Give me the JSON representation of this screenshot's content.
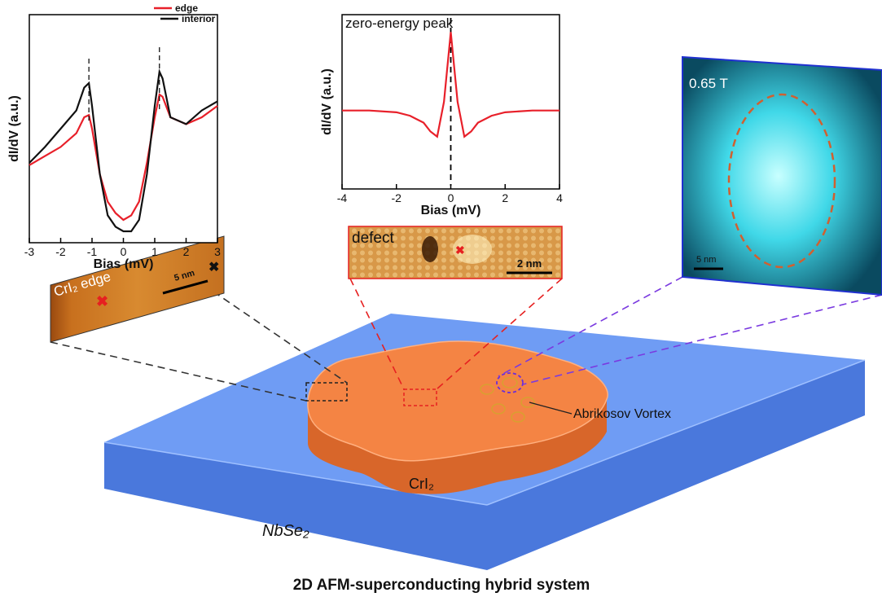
{
  "chart_data": [
    {
      "type": "line",
      "x_label": "Bias (mV)",
      "y_label": "dI/dV (a.u.)",
      "legend": "upper right",
      "x": [
        -3,
        -2.5,
        -2,
        -1.5,
        -1.25,
        -1.1,
        -1,
        -0.75,
        -0.5,
        -0.25,
        0,
        0.25,
        0.5,
        0.75,
        1,
        1.15,
        1.25,
        1.5,
        2,
        2.5,
        3
      ],
      "series": [
        {
          "name": "edge",
          "color": "#e8202a",
          "values": [
            0.34,
            0.38,
            0.42,
            0.48,
            0.55,
            0.56,
            0.5,
            0.3,
            0.18,
            0.13,
            0.1,
            0.12,
            0.18,
            0.35,
            0.55,
            0.65,
            0.64,
            0.55,
            0.52,
            0.55,
            0.6
          ]
        },
        {
          "name": "interior",
          "color": "#111111",
          "values": [
            0.35,
            0.42,
            0.5,
            0.58,
            0.68,
            0.7,
            0.6,
            0.3,
            0.12,
            0.07,
            0.05,
            0.05,
            0.1,
            0.3,
            0.6,
            0.75,
            0.72,
            0.55,
            0.52,
            0.58,
            0.62
          ]
        }
      ],
      "xlim": [
        -3,
        3
      ],
      "xticks": [
        -3,
        -2,
        -1,
        0,
        1,
        2,
        3
      ],
      "ylim": [
        0,
        1
      ]
    },
    {
      "type": "line",
      "title": "zero-energy peak",
      "x_label": "Bias (mV)",
      "y_label": "dI/dV (a.u.)",
      "x": [
        -4,
        -3,
        -2,
        -1.5,
        -1,
        -0.75,
        -0.5,
        -0.25,
        0,
        0.25,
        0.5,
        0.75,
        1,
        1.5,
        2,
        3,
        4
      ],
      "series": [
        {
          "color": "#e8202a",
          "values": [
            0.45,
            0.45,
            0.44,
            0.42,
            0.38,
            0.33,
            0.3,
            0.5,
            0.9,
            0.5,
            0.3,
            0.33,
            0.38,
            0.42,
            0.44,
            0.45,
            0.45
          ]
        }
      ],
      "xlim": [
        -4,
        4
      ],
      "xticks": [
        -4,
        -2,
        0,
        2,
        4
      ],
      "ylim": [
        0,
        1
      ]
    }
  ],
  "images": [
    {
      "label": "CrI₂ edge",
      "scale_bar": "5 nm"
    },
    {
      "label": "defect",
      "scale_bar": "2 nm"
    },
    {
      "label": "0.65 T",
      "scale_bar": "5 nm"
    }
  ],
  "annotations": {
    "vortex": "Abrikosov Vortex",
    "flake": "CrI₂",
    "substrate": "NbSe₂"
  },
  "caption": "2D AFM-superconducting hybrid system"
}
